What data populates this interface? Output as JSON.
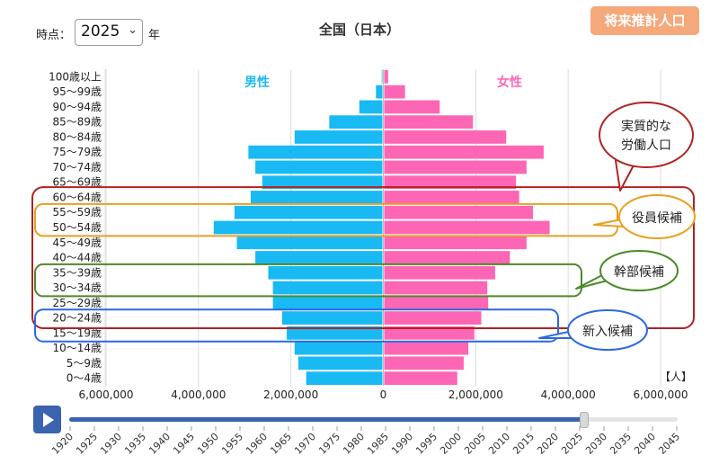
{
  "controls": {
    "time_label": "時点：",
    "year_value": "2025",
    "year_unit": "年",
    "projection_button": "将来推計人口",
    "slider_position": 0.846
  },
  "slider_years": [
    "1920",
    "1925",
    "1930",
    "1935",
    "1940",
    "1945",
    "1950",
    "1955",
    "1960",
    "1965",
    "1970",
    "1975",
    "1980",
    "1985",
    "1990",
    "1995",
    "2000",
    "2005",
    "2010",
    "2015",
    "2020",
    "2025",
    "2030",
    "2035",
    "2040",
    "2045"
  ],
  "chart_data": {
    "type": "bar",
    "title": "全国（日本）",
    "unit_label": "【人】",
    "categories": [
      "100歳以上",
      "95〜99歳",
      "90〜94歳",
      "85〜89歳",
      "80〜84歳",
      "75〜79歳",
      "70〜74歳",
      "65〜69歳",
      "60〜64歳",
      "55〜59歳",
      "50〜54歳",
      "45〜49歳",
      "40〜44歳",
      "35〜39歳",
      "30〜34歳",
      "25〜29歳",
      "20〜24歳",
      "15〜19歳",
      "10〜14歳",
      "5〜9歳",
      "0〜4歳"
    ],
    "series": [
      {
        "name": "男性",
        "color": "#19b9f4",
        "values": [
          15000,
          140000,
          500000,
          1150000,
          1900000,
          2900000,
          2750000,
          2600000,
          2850000,
          3200000,
          3650000,
          3150000,
          2750000,
          2470000,
          2370000,
          2370000,
          2170000,
          2070000,
          1900000,
          1820000,
          1650000
        ]
      },
      {
        "name": "女性",
        "color": "#fd66b4",
        "values": [
          85000,
          450000,
          1200000,
          1920000,
          2640000,
          3450000,
          3080000,
          2850000,
          2920000,
          3220000,
          3580000,
          3080000,
          2720000,
          2400000,
          2230000,
          2250000,
          2100000,
          1950000,
          1820000,
          1720000,
          1580000
        ]
      }
    ],
    "xlim": [
      -6000000,
      6000000
    ],
    "xticks": [
      "6,000,000",
      "4,000,000",
      "2,000,000",
      "0",
      "2,000,000",
      "4,000,000",
      "6,000,000"
    ],
    "grid": true
  },
  "annotations": [
    {
      "text": "実質的な\n労働人口",
      "color": "#b22222"
    },
    {
      "text": "役員候補",
      "color": "#e8a020"
    },
    {
      "text": "幹部候補",
      "color": "#4a8a2a"
    },
    {
      "text": "新入候補",
      "color": "#2a6adf"
    }
  ]
}
